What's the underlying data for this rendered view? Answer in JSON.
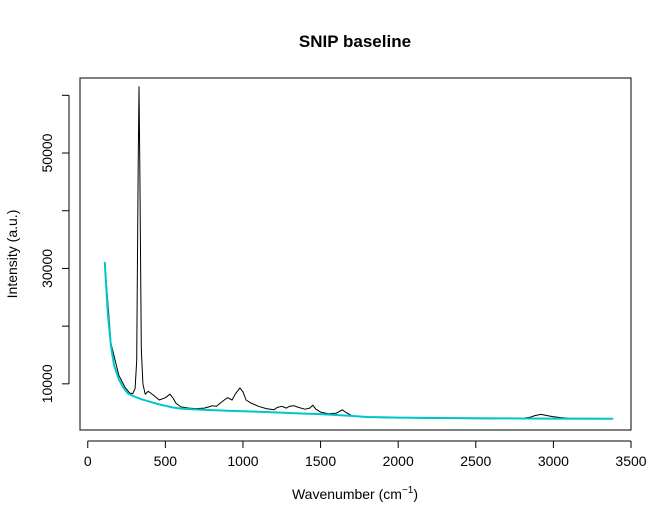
{
  "chart_data": {
    "type": "line",
    "title": "SNIP baseline",
    "xlabel": "Wavenumber (cm",
    "xlabel_superscript": "−1",
    "xlabel_suffix": ")",
    "ylabel": "Intensity (a.u.)",
    "xlim": [
      -50,
      3500
    ],
    "ylim": [
      2000,
      63000
    ],
    "x_ticks": [
      0,
      500,
      1000,
      1500,
      2000,
      2500,
      3000,
      3500
    ],
    "y_ticks": [
      10000,
      20000,
      30000,
      40000,
      50000,
      60000
    ],
    "y_tick_labels": [
      "10000",
      "",
      "30000",
      "",
      "50000",
      ""
    ],
    "grid": false,
    "legend": "none",
    "series": [
      {
        "color": "#000000",
        "x": [
          110,
          150,
          200,
          240,
          270,
          290,
          305,
          315,
          325,
          330,
          335,
          345,
          355,
          370,
          390,
          410,
          430,
          460,
          500,
          530,
          550,
          570,
          600,
          650,
          700,
          750,
          780,
          800,
          830,
          850,
          880,
          900,
          930,
          950,
          980,
          1000,
          1020,
          1050,
          1100,
          1150,
          1200,
          1220,
          1250,
          1280,
          1300,
          1330,
          1360,
          1400,
          1430,
          1450,
          1470,
          1500,
          1550,
          1600,
          1640,
          1660,
          1700,
          1750,
          1800,
          1900,
          2000,
          2200,
          2400,
          2600,
          2800,
          2850,
          2880,
          2920,
          2960,
          3000,
          3050,
          3100,
          3380
        ],
        "y": [
          31000,
          17000,
          11500,
          9400,
          8400,
          8300,
          9200,
          14000,
          48000,
          61500,
          48000,
          16000,
          10000,
          8200,
          8700,
          8300,
          7900,
          7200,
          7600,
          8200,
          7500,
          6600,
          6000,
          5800,
          5700,
          5800,
          6000,
          6200,
          6100,
          6600,
          7200,
          7600,
          7200,
          8200,
          9300,
          8600,
          7200,
          6700,
          6100,
          5700,
          5500,
          5900,
          6100,
          5800,
          6100,
          6200,
          5900,
          5600,
          5800,
          6300,
          5600,
          5100,
          4800,
          4900,
          5500,
          5100,
          4500,
          4300,
          4200,
          4150,
          4100,
          4050,
          4000,
          3950,
          4050,
          4200,
          4500,
          4700,
          4500,
          4300,
          4150,
          4050,
          4000
        ]
      },
      {
        "color": "#00c5cd",
        "x": [
          110,
          130,
          150,
          170,
          200,
          230,
          260,
          300,
          350,
          400,
          450,
          500,
          550,
          600,
          700,
          800,
          900,
          1000,
          1100,
          1200,
          1300,
          1400,
          1500,
          1600,
          1700,
          1800,
          2000,
          2200,
          2500,
          2800,
          3000,
          3200,
          3380
        ],
        "y": [
          31000,
          22000,
          16500,
          13200,
          10800,
          9300,
          8300,
          7800,
          7300,
          6900,
          6500,
          6200,
          5900,
          5700,
          5550,
          5450,
          5350,
          5250,
          5150,
          5050,
          4950,
          4850,
          4750,
          4600,
          4450,
          4250,
          4150,
          4100,
          4050,
          4000,
          3980,
          3960,
          3950
        ]
      }
    ]
  }
}
